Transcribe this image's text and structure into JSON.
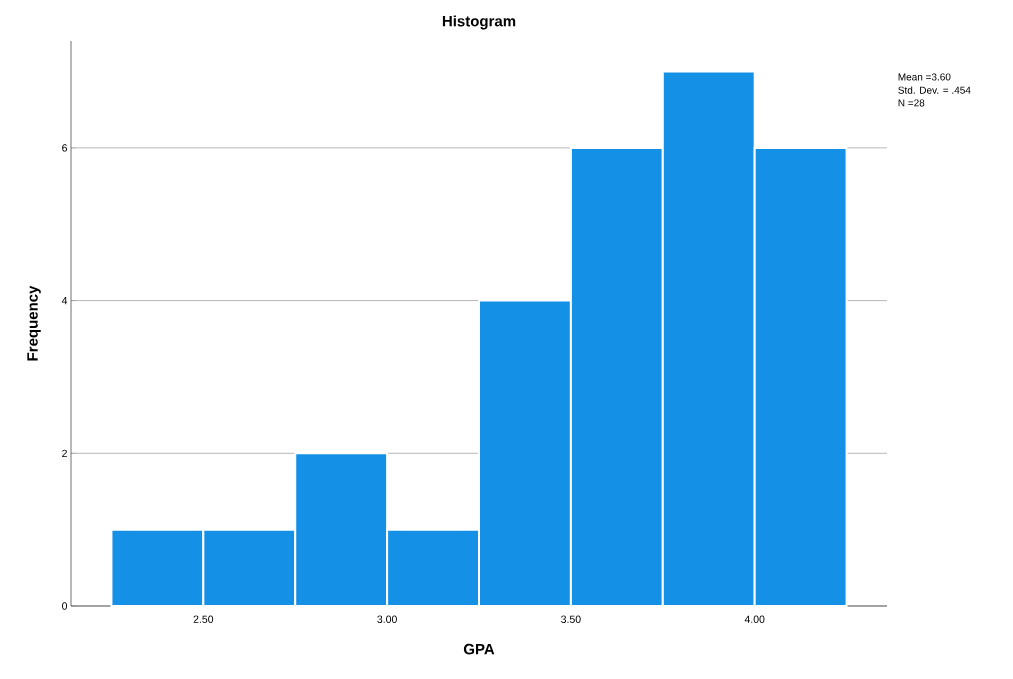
{
  "chart_data": {
    "type": "histogram",
    "title": "Histogram",
    "xlabel": "GPA",
    "ylabel": "Frequency",
    "bins": [
      2.25,
      2.5,
      2.75,
      3.0,
      3.25,
      3.5,
      3.75,
      4.0,
      4.25
    ],
    "values": [
      1,
      1,
      2,
      1,
      4,
      6,
      7,
      6
    ],
    "color": "#1491e6",
    "xlim": [
      2.14,
      4.36
    ],
    "ylim": [
      0,
      7.4
    ],
    "xticks": [
      {
        "value": 2.5,
        "label": "2.50"
      },
      {
        "value": 3.0,
        "label": "3.00"
      },
      {
        "value": 3.5,
        "label": "3.50"
      },
      {
        "value": 4.0,
        "label": "4.00"
      }
    ],
    "yticks": [
      0,
      2,
      4,
      6
    ],
    "grid": "y",
    "annotations": [
      "Mean =3.60",
      "Std. Dev. = .454",
      "N =28"
    ]
  }
}
